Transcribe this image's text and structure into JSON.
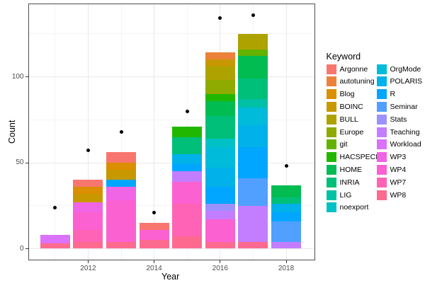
{
  "chart_data": {
    "type": "bar",
    "stacked": true,
    "title": "",
    "xlabel": "Year",
    "ylabel": "Count",
    "legend_title": "Keyword",
    "x_major_ticks": [
      2012,
      2014,
      2016,
      2018
    ],
    "x_minor_years": [
      2011,
      2013,
      2015,
      2017
    ],
    "y_ticks": [
      0,
      50,
      100
    ],
    "y_minor_ticks": [
      25,
      75,
      125
    ],
    "ylim": [
      0,
      143
    ],
    "grid": true,
    "legend_position": "right",
    "keywords": [
      {
        "name": "Argonne",
        "color": "#F8766D"
      },
      {
        "name": "autotuning",
        "color": "#EC8239"
      },
      {
        "name": "Blog",
        "color": "#DB8E00"
      },
      {
        "name": "BOINC",
        "color": "#C79800"
      },
      {
        "name": "BULL",
        "color": "#AEA200"
      },
      {
        "name": "Europe",
        "color": "#8FAA00"
      },
      {
        "name": "git",
        "color": "#64B200"
      },
      {
        "name": "HACSPECIS",
        "color": "#21B700"
      },
      {
        "name": "HOME",
        "color": "#00BC51"
      },
      {
        "name": "INRIA",
        "color": "#00BF78"
      },
      {
        "name": "LIG",
        "color": "#00C0A5"
      },
      {
        "name": "noexport",
        "color": "#00C1C5"
      },
      {
        "name": "OrgMode",
        "color": "#00BBDA"
      },
      {
        "name": "POLARIS",
        "color": "#00B2E9"
      },
      {
        "name": "R",
        "color": "#00A6FF"
      },
      {
        "name": "Seminar",
        "color": "#519FFF"
      },
      {
        "name": "Stats",
        "color": "#9B92FF"
      },
      {
        "name": "Teaching",
        "color": "#C27EFF"
      },
      {
        "name": "Workload",
        "color": "#DA72FB"
      },
      {
        "name": "WP3",
        "color": "#F064E6"
      },
      {
        "name": "WP4",
        "color": "#FB61D1"
      },
      {
        "name": "WP7",
        "color": "#FF63B5"
      },
      {
        "name": "WP8",
        "color": "#FD6A90"
      }
    ],
    "bars": [
      {
        "year": 2011,
        "total": 8,
        "segments": [
          {
            "keyword": "Workload",
            "value": 5
          },
          {
            "keyword": "WP8",
            "value": 3
          }
        ]
      },
      {
        "year": 2012,
        "total": 40,
        "segments": [
          {
            "keyword": "Argonne",
            "value": 4
          },
          {
            "keyword": "Blog",
            "value": 4
          },
          {
            "keyword": "BOINC",
            "value": 5
          },
          {
            "keyword": "WP3",
            "value": 6
          },
          {
            "keyword": "WP4",
            "value": 10
          },
          {
            "keyword": "WP7",
            "value": 7
          },
          {
            "keyword": "WP8",
            "value": 4
          }
        ]
      },
      {
        "year": 2013,
        "total": 56,
        "segments": [
          {
            "keyword": "Argonne",
            "value": 6
          },
          {
            "keyword": "Blog",
            "value": 4
          },
          {
            "keyword": "BOINC",
            "value": 6
          },
          {
            "keyword": "R",
            "value": 4
          },
          {
            "keyword": "WP3",
            "value": 8
          },
          {
            "keyword": "WP4",
            "value": 24
          },
          {
            "keyword": "WP8",
            "value": 4
          }
        ]
      },
      {
        "year": 2014,
        "total": 15,
        "segments": [
          {
            "keyword": "Argonne",
            "value": 4
          },
          {
            "keyword": "WP4",
            "value": 6
          },
          {
            "keyword": "WP8",
            "value": 5
          }
        ]
      },
      {
        "year": 2015,
        "total": 71,
        "segments": [
          {
            "keyword": "HACSPECIS",
            "value": 6
          },
          {
            "keyword": "INRIA",
            "value": 10
          },
          {
            "keyword": "POLARIS",
            "value": 6
          },
          {
            "keyword": "R",
            "value": 4
          },
          {
            "keyword": "Teaching",
            "value": 6
          },
          {
            "keyword": "WP4",
            "value": 13
          },
          {
            "keyword": "WP7",
            "value": 19
          },
          {
            "keyword": "WP8",
            "value": 7
          }
        ]
      },
      {
        "year": 2016,
        "total": 114,
        "segments": [
          {
            "keyword": "autotuning",
            "value": 4
          },
          {
            "keyword": "BOINC",
            "value": 4
          },
          {
            "keyword": "BULL",
            "value": 8
          },
          {
            "keyword": "Europe",
            "value": 8
          },
          {
            "keyword": "HACSPECIS",
            "value": 4
          },
          {
            "keyword": "HOME",
            "value": 9
          },
          {
            "keyword": "INRIA",
            "value": 13
          },
          {
            "keyword": "noexport",
            "value": 5
          },
          {
            "keyword": "OrgMode",
            "value": 12
          },
          {
            "keyword": "POLARIS",
            "value": 11
          },
          {
            "keyword": "R",
            "value": 10
          },
          {
            "keyword": "Stats",
            "value": 4
          },
          {
            "keyword": "Teaching",
            "value": 5
          },
          {
            "keyword": "WP4",
            "value": 13
          },
          {
            "keyword": "WP8",
            "value": 4
          }
        ]
      },
      {
        "year": 2017,
        "total": 125,
        "segments": [
          {
            "keyword": "BULL",
            "value": 9
          },
          {
            "keyword": "git",
            "value": 4
          },
          {
            "keyword": "HOME",
            "value": 13
          },
          {
            "keyword": "INRIA",
            "value": 12
          },
          {
            "keyword": "LIG",
            "value": 5
          },
          {
            "keyword": "OrgMode",
            "value": 10
          },
          {
            "keyword": "POLARIS",
            "value": 13
          },
          {
            "keyword": "R",
            "value": 18
          },
          {
            "keyword": "Seminar",
            "value": 16
          },
          {
            "keyword": "Teaching",
            "value": 21
          },
          {
            "keyword": "WP8",
            "value": 4
          }
        ]
      },
      {
        "year": 2018,
        "total": 37,
        "segments": [
          {
            "keyword": "HOME",
            "value": 7
          },
          {
            "keyword": "INRIA",
            "value": 4
          },
          {
            "keyword": "POLARIS",
            "value": 5
          },
          {
            "keyword": "R",
            "value": 5
          },
          {
            "keyword": "Seminar",
            "value": 12
          },
          {
            "keyword": "Teaching",
            "value": 4
          }
        ]
      }
    ],
    "points": [
      {
        "year": 2011,
        "value": 24
      },
      {
        "year": 2012,
        "value": 57
      },
      {
        "year": 2013,
        "value": 68
      },
      {
        "year": 2014,
        "value": 21
      },
      {
        "year": 2015,
        "value": 80
      },
      {
        "year": 2016,
        "value": 134
      },
      {
        "year": 2017,
        "value": 136
      },
      {
        "year": 2018,
        "value": 48
      }
    ]
  }
}
